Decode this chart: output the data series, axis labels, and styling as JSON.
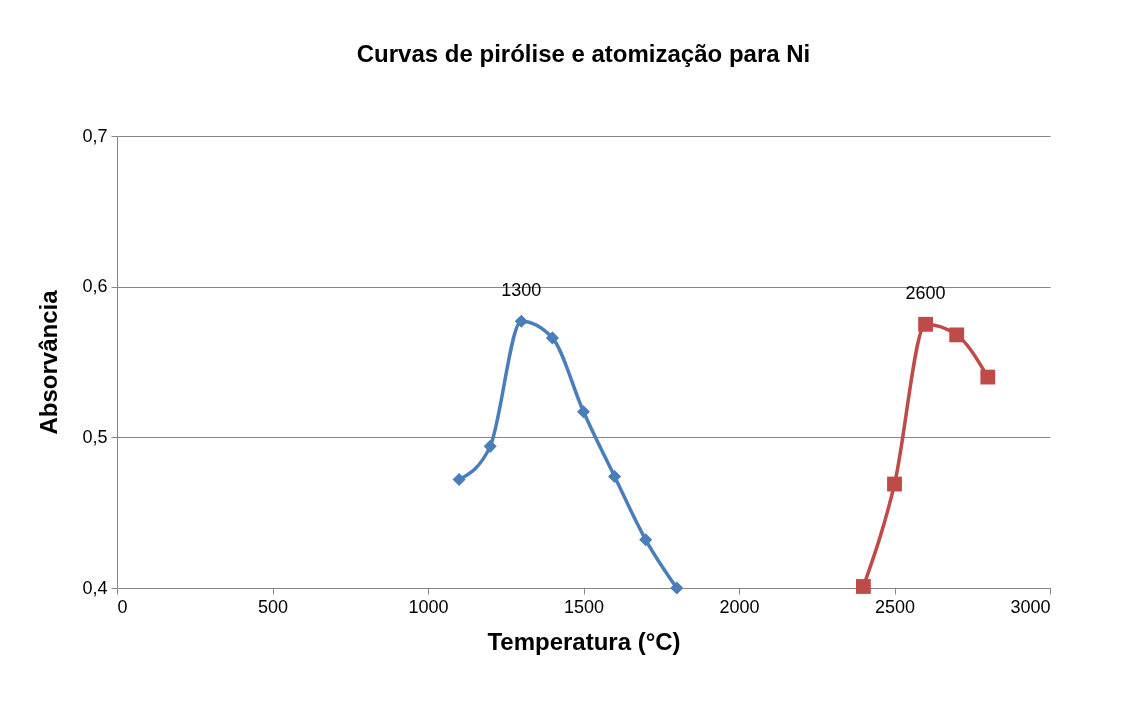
{
  "chart_data": {
    "type": "line",
    "title": "Curvas de pirólise e atomização para Ni",
    "xlabel": "Temperatura (°C)",
    "ylabel": "Absorvância",
    "series": [
      {
        "color": "#4a7ebb",
        "marker": "diamond",
        "x": [
          1100,
          1200,
          1300,
          1400,
          1500,
          1600,
          1700,
          1800
        ],
        "values": [
          0.472,
          0.494,
          0.577,
          0.566,
          0.517,
          0.474,
          0.432,
          0.4
        ]
      },
      {
        "color": "#be4b48",
        "marker": "square",
        "x": [
          2400,
          2500,
          2600,
          2700,
          2800
        ],
        "values": [
          0.401,
          0.469,
          0.575,
          0.568,
          0.54
        ]
      }
    ],
    "xlim": [
      0,
      3000
    ],
    "xticks": [
      0,
      500,
      1000,
      1500,
      2000,
      2500,
      3000
    ],
    "ylim": [
      0.4,
      0.7
    ],
    "yticks": [
      {
        "value": 0.4,
        "label": "0,4"
      },
      {
        "value": 0.5,
        "label": "0,5"
      },
      {
        "value": 0.6,
        "label": "0,6"
      },
      {
        "value": 0.7,
        "label": "0,7"
      }
    ],
    "grid": "y",
    "line_style": "solid",
    "annotations": [
      {
        "text": "1300",
        "x": 1300,
        "y": 0.577
      },
      {
        "text": "2600",
        "x": 2600,
        "y": 0.575
      }
    ]
  }
}
